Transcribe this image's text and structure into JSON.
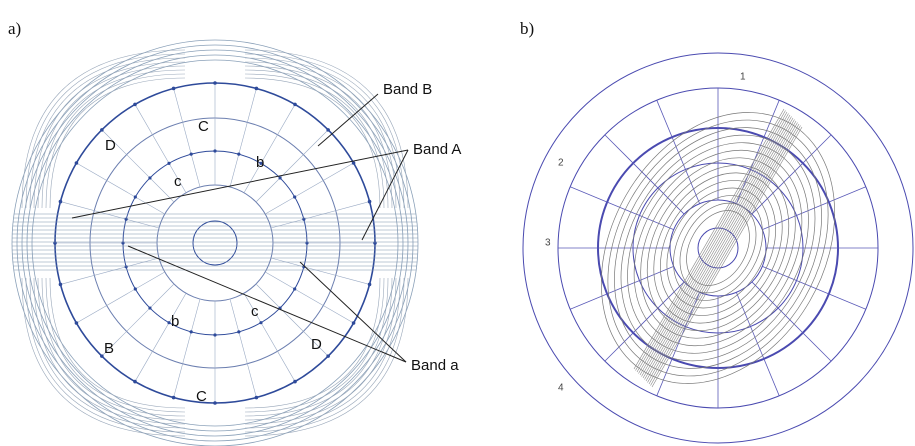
{
  "panel_a": {
    "label": "a)",
    "annotations": [
      "Band B",
      "Band A",
      "Band a"
    ],
    "regions": [
      "C",
      "D",
      "c",
      "b",
      "B",
      "b",
      "c",
      "D",
      "C"
    ]
  },
  "panel_b": {
    "label": "b)",
    "regions": [
      "1",
      "2",
      "3",
      "4"
    ]
  }
}
